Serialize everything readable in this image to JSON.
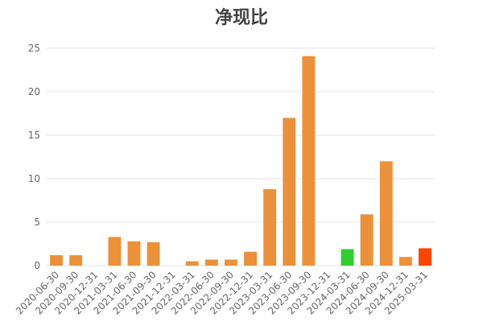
{
  "chart_data": {
    "type": "bar",
    "title": "净现比",
    "xlabel": "",
    "ylabel": "",
    "ylim": [
      0,
      25
    ],
    "yticks": [
      0,
      5,
      10,
      15,
      20,
      25
    ],
    "grid": true,
    "colors": {
      "default": "#eb913b",
      "highlight_green": "#33cc33",
      "highlight_red": "#ff4500"
    },
    "categories": [
      "2020-06-30",
      "2020-09-30",
      "2020-12-31",
      "2021-03-31",
      "2021-06-30",
      "2021-09-30",
      "2021-12-31",
      "2022-03-31",
      "2022-06-30",
      "2022-09-30",
      "2022-12-31",
      "2023-03-31",
      "2023-06-30",
      "2023-09-30",
      "2023-12-31",
      "2024-03-31",
      "2024-06-30",
      "2024-09-30",
      "2024-12-31",
      "2025-03-31"
    ],
    "values": [
      1.2,
      1.2,
      null,
      3.3,
      2.8,
      2.7,
      null,
      0.5,
      0.7,
      0.7,
      1.6,
      8.8,
      17.0,
      24.1,
      null,
      1.9,
      5.9,
      12.0,
      1.0,
      2.0
    ],
    "bar_colors": [
      "default",
      "default",
      "default",
      "default",
      "default",
      "default",
      "default",
      "default",
      "default",
      "default",
      "default",
      "default",
      "default",
      "default",
      "default",
      "highlight_green",
      "default",
      "default",
      "default",
      "highlight_red"
    ]
  }
}
